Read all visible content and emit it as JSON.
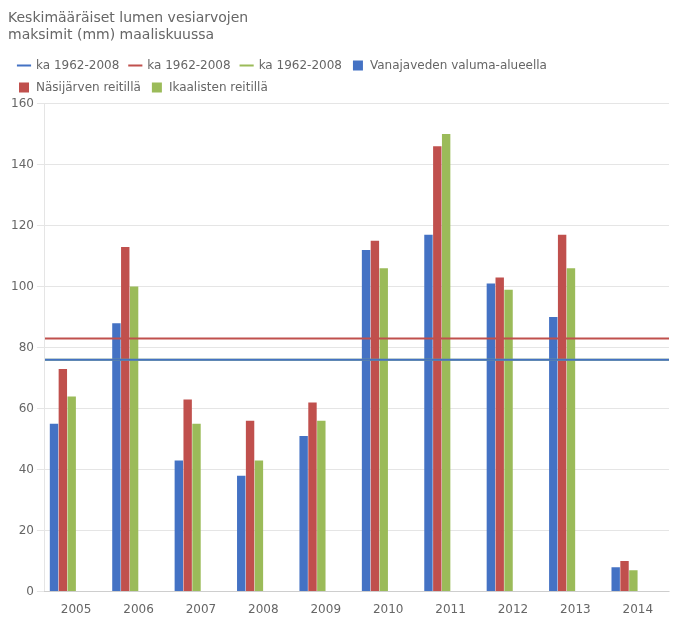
{
  "chart_data": {
    "type": "bar",
    "title": "Keskimääräiset lumen vesiarvojen\nmaksimit (mm) maaliskuussa",
    "categories": [
      "2005",
      "2006",
      "2007",
      "2008",
      "2009",
      "2010",
      "2011",
      "2012",
      "2013",
      "2014"
    ],
    "series": [
      {
        "name": "Vanajaveden valuma-alueella",
        "color": "#4472C4",
        "values": [
          55,
          88,
          43,
          38,
          51,
          112,
          117,
          101,
          90,
          8
        ],
        "hline": 76,
        "hline_name": "ka 1962-2008"
      },
      {
        "name": "Näsijärven reitillä",
        "color": "#C0504D",
        "values": [
          73,
          113,
          63,
          56,
          62,
          115,
          146,
          103,
          117,
          10
        ],
        "hline": 83,
        "hline_name": "ka 1962-2008"
      },
      {
        "name": "Ikaalisten reitillä",
        "color": "#9BBB59",
        "values": [
          64,
          100,
          55,
          43,
          56,
          106,
          150,
          99,
          106,
          7
        ],
        "hline": 76,
        "hline_name": "ka 1962-2008"
      }
    ],
    "ylim": [
      0,
      160
    ],
    "yticks": [
      0,
      20,
      40,
      60,
      80,
      100,
      120,
      140,
      160
    ],
    "grid": true,
    "legend": "top"
  }
}
